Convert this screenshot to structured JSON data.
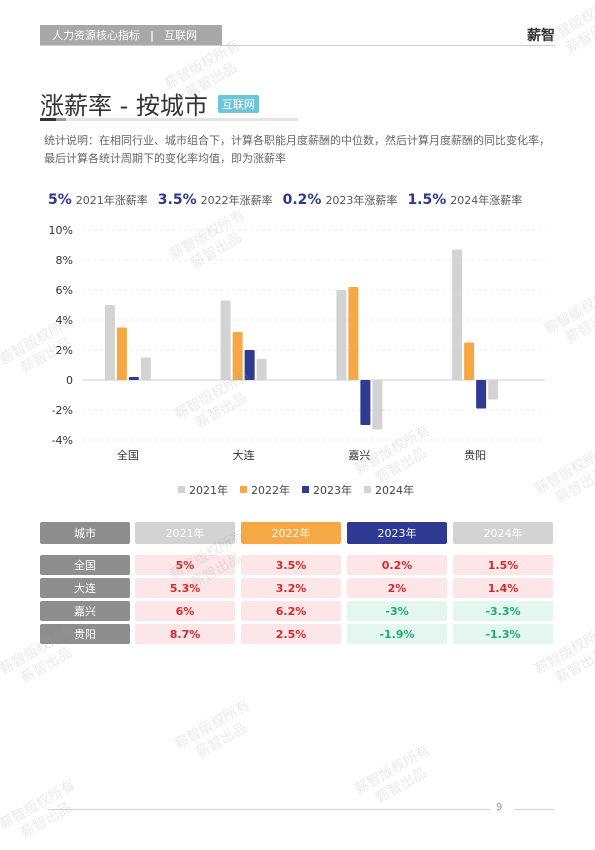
{
  "header": {
    "section": "人力资源核心指标",
    "tag": "互联网",
    "brand": "薪智"
  },
  "title": {
    "text": "涨薪率 - 按城市",
    "badge": "互联网"
  },
  "description": "统计说明：在相同行业、城市组合下，计算各职能月度薪酬的中位数，然后计算月度薪酬的同比变化率，最后计算各统计周期下的变化率均值，即为涨薪率",
  "summary": [
    {
      "value": "5%",
      "label": "2021年涨薪率"
    },
    {
      "value": "3.5%",
      "label": "2022年涨薪率"
    },
    {
      "value": "0.2%",
      "label": "2023年涨薪率"
    },
    {
      "value": "1.5%",
      "label": "2024年涨薪率"
    }
  ],
  "chart_data": {
    "type": "bar",
    "categories": [
      "全国",
      "大连",
      "嘉兴",
      "贵阳"
    ],
    "series": [
      {
        "name": "2021年",
        "color": "#d3d3d3",
        "values": [
          5.0,
          5.3,
          6.0,
          8.7
        ]
      },
      {
        "name": "2022年",
        "color": "#f5a844",
        "values": [
          3.5,
          3.2,
          6.2,
          2.5
        ]
      },
      {
        "name": "2023年",
        "color": "#2f3b93",
        "values": [
          0.2,
          2.0,
          -3.0,
          -1.9
        ]
      },
      {
        "name": "2024年",
        "color": "#d3d3d3",
        "values": [
          1.5,
          1.4,
          -3.3,
          -1.3
        ]
      }
    ],
    "yticks": [
      "10%",
      "8%",
      "6%",
      "4%",
      "2%",
      "0",
      "-2%",
      "-4%"
    ],
    "ylim": [
      -4,
      10
    ],
    "legend": "bottom",
    "grid": true
  },
  "table": {
    "headers": [
      "城市",
      "2021年",
      "2022年",
      "2023年",
      "2024年"
    ],
    "header_colors": [
      "#8e8e8e",
      "#d3d3d3",
      "#f5a844",
      "#2f3b93",
      "#d3d3d3"
    ],
    "rows": [
      {
        "city": "全国",
        "values": [
          "5%",
          "3.5%",
          "0.2%",
          "1.5%"
        ]
      },
      {
        "city": "大连",
        "values": [
          "5.3%",
          "3.2%",
          "2%",
          "1.4%"
        ]
      },
      {
        "city": "嘉兴",
        "values": [
          "6%",
          "6.2%",
          "-3%",
          "-3.3%"
        ]
      },
      {
        "city": "贵阳",
        "values": [
          "8.7%",
          "2.5%",
          "-1.9%",
          "-1.3%"
        ]
      }
    ]
  },
  "footer": {
    "page": "9"
  },
  "watermark": {
    "line1": "薪智版权所有",
    "line2": "薪智出品"
  }
}
